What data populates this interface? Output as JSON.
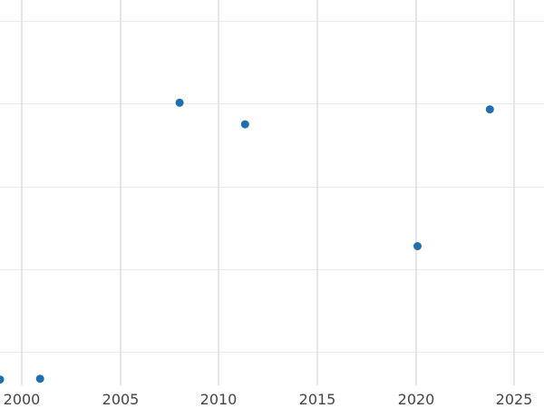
{
  "chart_data": {
    "type": "scatter",
    "title": "",
    "xlabel": "",
    "ylabel": "",
    "xlim": [
      1998.9,
      2026.5
    ],
    "ylim": [
      0.6,
      5.25
    ],
    "x_ticks": [
      2000,
      2005,
      2010,
      2015,
      2020,
      2025
    ],
    "x_tick_labels": [
      "2000",
      "2005",
      "2010",
      "2015",
      "2020",
      "2025"
    ],
    "y_gridlines": [
      1,
      2,
      3,
      4,
      5
    ],
    "y_tick_labels_visible": false,
    "grid": true,
    "legend": "none",
    "point_color": "#1f6fae",
    "series": [
      {
        "x": [
          "1998-11-25",
          "2000-12-07",
          "2008-01-05",
          "2011-05-03",
          "2020-01-31",
          "2023-10-03"
        ],
        "y": [
          0.67,
          0.68,
          4.01,
          3.75,
          2.28,
          3.93
        ]
      }
    ]
  }
}
